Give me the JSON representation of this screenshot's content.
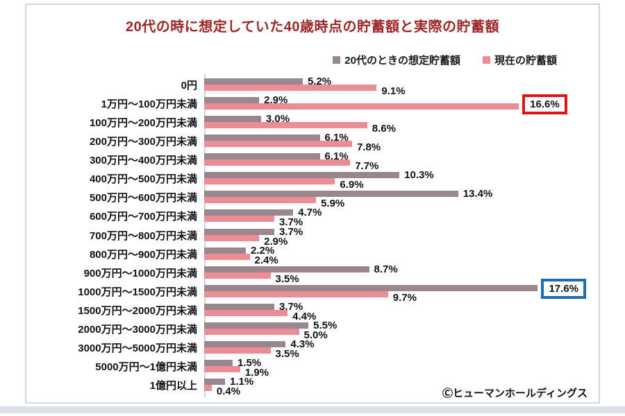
{
  "title": "20代の時に想定していた40歳時点の貯蓄額と実際の貯蓄額",
  "title_color": "#9e2525",
  "copyright": "Ⓒヒューマンホールディングス",
  "legend": [
    {
      "label": "20代のときの想定貯蓄額",
      "color": "#9a878d"
    },
    {
      "label": "現在の貯蓄額",
      "color": "#ec8c95"
    }
  ],
  "chart_data": {
    "type": "bar",
    "orientation": "horizontal",
    "title": "20代の時に想定していた40歳時点の貯蓄額と実際の貯蓄額",
    "value_suffix": "%",
    "xlim": [
      0,
      21
    ],
    "grid": false,
    "legend_position": "top-right",
    "categories": [
      "0円",
      "1万円～100万円未満",
      "100万円～200万円未満",
      "200万円～300万円未満",
      "300万円～400万円未満",
      "400万円～500万円未満",
      "500万円～600万円未満",
      "600万円～700万円未満",
      "700万円～800万円未満",
      "800万円～900万円未満",
      "900万円～1000万円未満",
      "1000万円～1500万円未満",
      "1500万円～2000万円未満",
      "2000万円～3000万円未満",
      "3000万円～5000万円未満",
      "5000万円～1億円未満",
      "1億円以上"
    ],
    "series": [
      {
        "name": "20代のときの想定貯蓄額",
        "color": "#9a878d",
        "values": [
          5.2,
          2.9,
          3.0,
          6.1,
          6.1,
          10.3,
          13.4,
          4.7,
          3.7,
          2.2,
          8.7,
          17.6,
          3.7,
          5.5,
          4.3,
          1.5,
          1.1
        ]
      },
      {
        "name": "現在の貯蓄額",
        "color": "#ec8c95",
        "values": [
          9.1,
          16.6,
          8.6,
          7.8,
          7.7,
          6.9,
          5.9,
          3.7,
          2.9,
          2.4,
          3.5,
          9.7,
          4.4,
          5.0,
          3.5,
          1.9,
          0.4
        ]
      }
    ],
    "highlights": [
      {
        "category_index": 1,
        "series_index": 1,
        "value": 16.6,
        "box_color": "#dd1414"
      },
      {
        "category_index": 11,
        "series_index": 0,
        "value": 17.6,
        "box_color": "#1d6cb5"
      }
    ]
  }
}
